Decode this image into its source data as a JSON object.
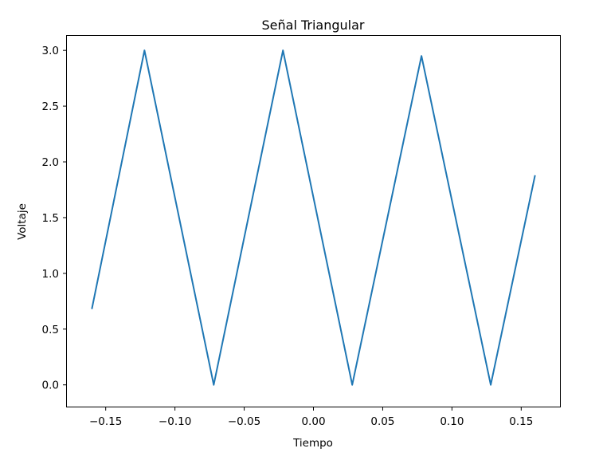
{
  "chart_data": {
    "type": "line",
    "title": "Señal Triangular",
    "xlabel": "Tiempo",
    "ylabel": "Voltaje",
    "xlim": [
      -0.178,
      0.178
    ],
    "ylim": [
      -0.195,
      3.13
    ],
    "xticks": [
      -0.15,
      -0.1,
      -0.05,
      0.0,
      0.05,
      0.1,
      0.15
    ],
    "xtick_labels": [
      "−0.15",
      "−0.10",
      "−0.05",
      "0.00",
      "0.05",
      "0.10",
      "0.15"
    ],
    "yticks": [
      0.0,
      0.5,
      1.0,
      1.5,
      2.0,
      2.5,
      3.0
    ],
    "ytick_labels": [
      "0.0",
      "0.5",
      "1.0",
      "1.5",
      "2.0",
      "2.5",
      "3.0"
    ],
    "grid": false,
    "series": [
      {
        "color": "#1f77b4",
        "x": [
          -0.16,
          -0.122,
          -0.072,
          -0.022,
          0.028,
          0.078,
          0.128,
          0.16
        ],
        "y": [
          0.68,
          3.0,
          0.0,
          3.0,
          0.0,
          2.95,
          0.0,
          1.88
        ]
      }
    ]
  }
}
